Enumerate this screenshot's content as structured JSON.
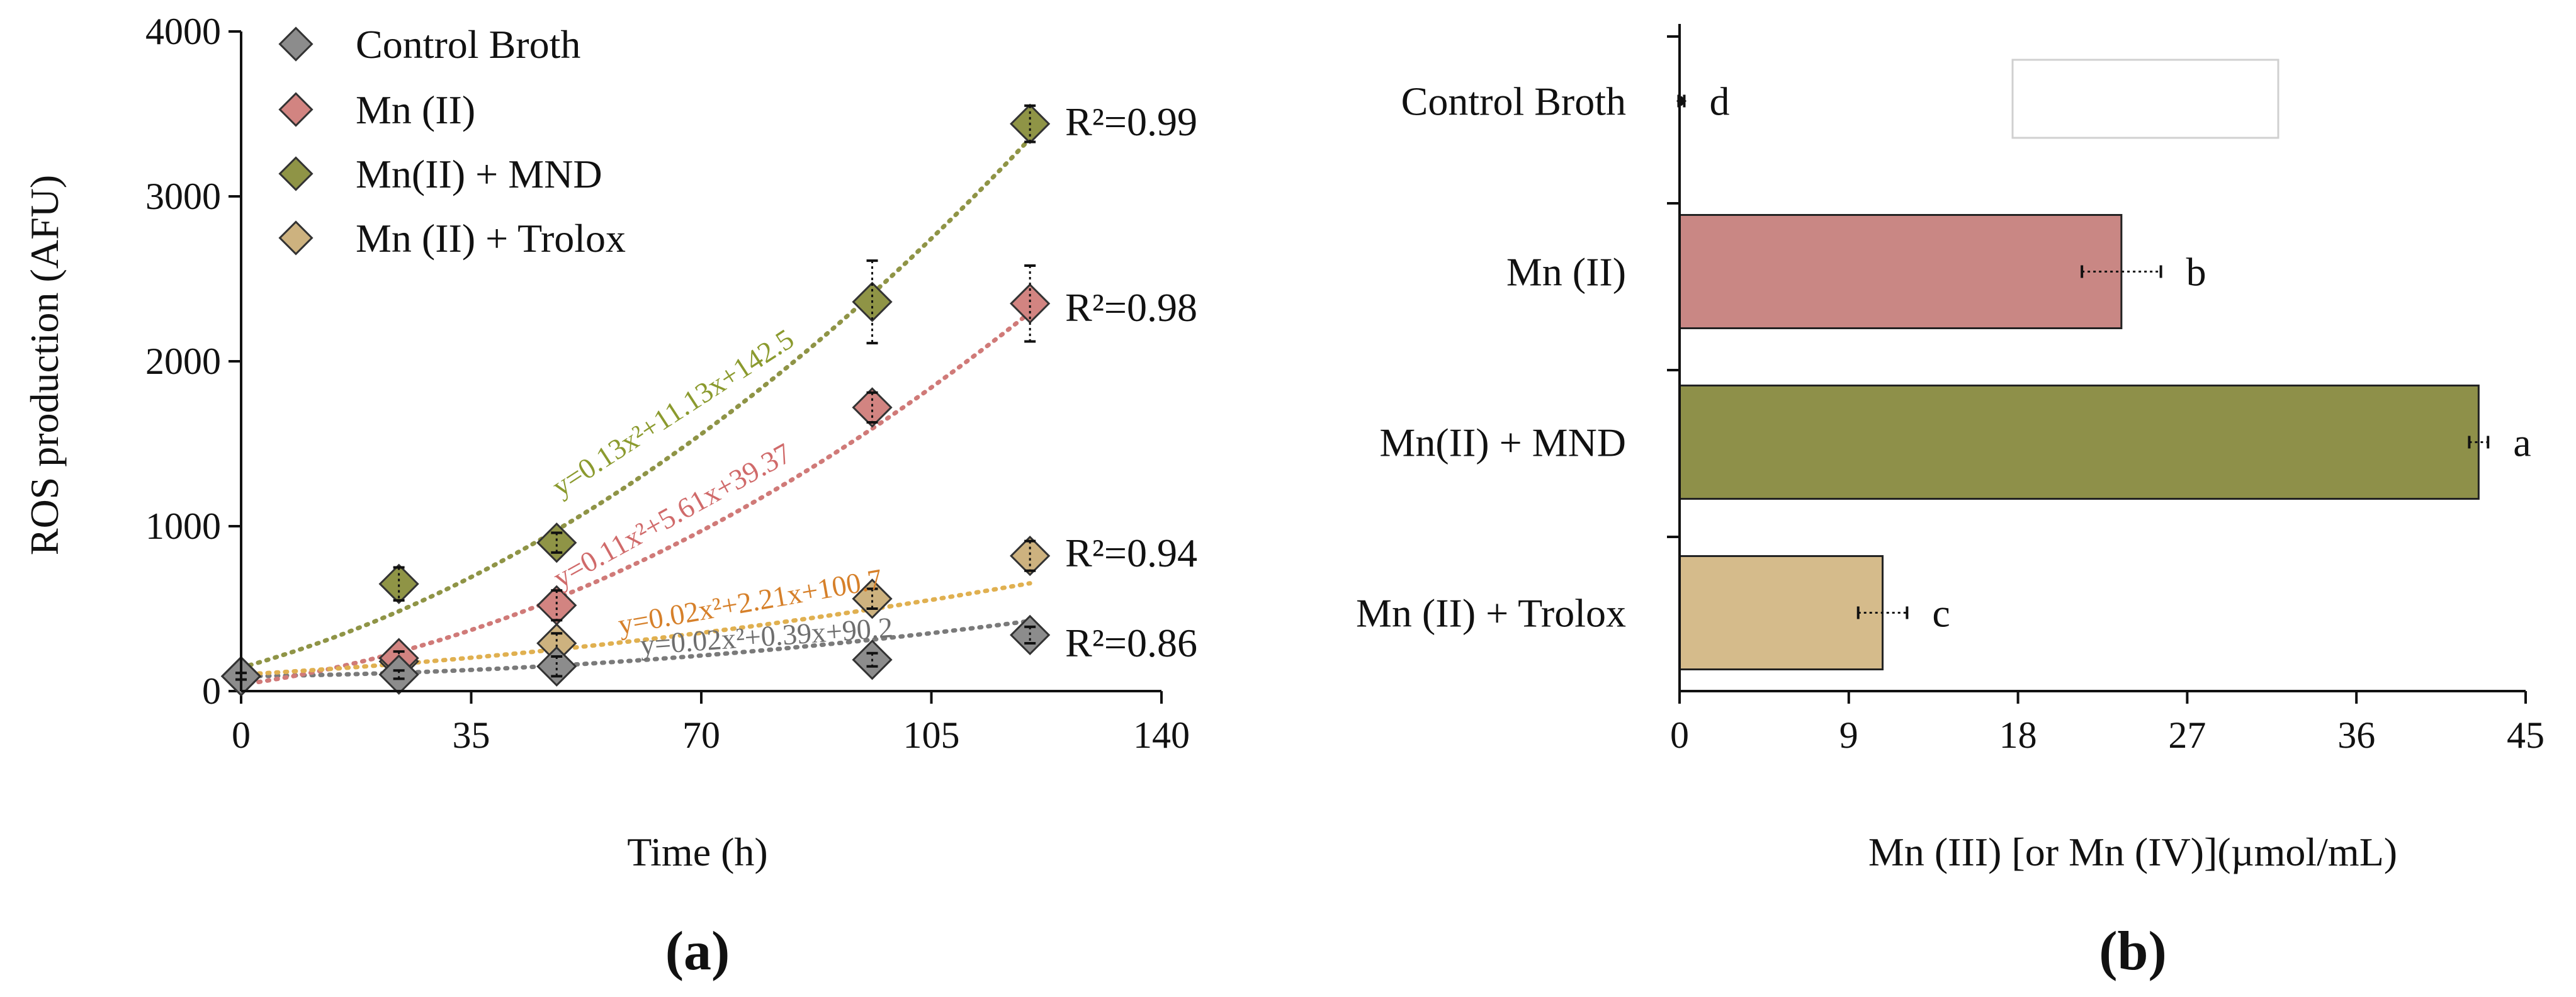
{
  "chart_data": [
    {
      "type": "scatter",
      "panel_label": "(a)",
      "xlabel": "Time (h)",
      "ylabel": "ROS production (AFU)",
      "xlim": [
        0,
        140
      ],
      "ylim": [
        0,
        4000
      ],
      "xticks": [
        0,
        35,
        70,
        105,
        140
      ],
      "yticks": [
        0,
        1000,
        2000,
        3000,
        4000
      ],
      "legend_position": "top-left",
      "trendline": "quadratic, dotted",
      "series": [
        {
          "name": "Control Broth",
          "color": "#8c8c8c",
          "line_color": "#7a7a7a",
          "label_color": "#6e6e6e",
          "x": [
            0,
            24,
            48,
            96,
            120
          ],
          "y": [
            90,
            100,
            150,
            190,
            340
          ],
          "err": [
            20,
            25,
            60,
            40,
            50
          ],
          "fit": [
            0.02,
            0.39,
            90.2
          ],
          "equation": "y=0.02x²+0.39x+90.2",
          "r2": "R²=0.86"
        },
        {
          "name": "Mn (II)",
          "color": "#d28481",
          "line_color": "#d07a78",
          "label_color": "#d06a6a",
          "x": [
            0,
            24,
            48,
            96,
            120
          ],
          "y": [
            90,
            200,
            520,
            1720,
            2350
          ],
          "err": [
            20,
            40,
            90,
            90,
            230
          ],
          "fit": [
            0.11,
            5.61,
            39.37
          ],
          "equation": "y=0.11x²+5.61x+39.37",
          "r2": "R²=0.98"
        },
        {
          "name": "Mn(II) + MND",
          "color": "#8f9446",
          "line_color": "#8f9446",
          "label_color": "#8b9a2e",
          "x": [
            0,
            24,
            48,
            96,
            120
          ],
          "y": [
            90,
            650,
            900,
            2360,
            3440
          ],
          "err": [
            20,
            100,
            60,
            250,
            110
          ],
          "fit": [
            0.13,
            11.13,
            142.5
          ],
          "equation": "y=0.13x²+11.13x+142.5",
          "r2": "R²=0.99"
        },
        {
          "name": "Mn (II) + Trolox",
          "color": "#cdb27f",
          "line_color": "#e0b050",
          "label_color": "#d6802a",
          "x": [
            0,
            24,
            48,
            96,
            120
          ],
          "y": [
            90,
            180,
            290,
            560,
            820
          ],
          "err": [
            20,
            30,
            60,
            60,
            90
          ],
          "fit": [
            0.02,
            2.21,
            100.7
          ],
          "equation": "y=0.02x²+2.21x+100.7",
          "r2": "R²=0.94"
        }
      ]
    },
    {
      "type": "bar",
      "orientation": "horizontal",
      "panel_label": "(b)",
      "xlabel": "Mn (III) [or Mn (IV)](µmol/mL)",
      "xlim": [
        0,
        45
      ],
      "xticks": [
        0,
        9,
        18,
        27,
        36,
        45
      ],
      "categories": [
        "Control Broth",
        "Mn (II)",
        "Mn(II) + MND",
        "Mn (II) + Trolox"
      ],
      "values": [
        0.1,
        23.5,
        42.5,
        10.8
      ],
      "errors": [
        0.15,
        2.1,
        0.5,
        1.3
      ],
      "letters": [
        "d",
        "b",
        "a",
        "c"
      ],
      "colors": [
        "#ffffff",
        "#c98784",
        "#8e9049",
        "#d5bb8b"
      ]
    }
  ]
}
